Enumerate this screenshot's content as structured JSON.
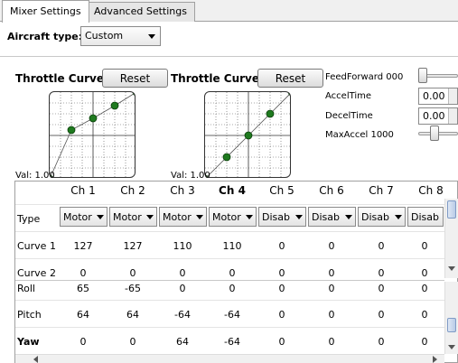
{
  "tabs": [
    {
      "label": "Mixer Settings",
      "active": true
    },
    {
      "label": "Advanced Settings",
      "active": false
    }
  ],
  "aircraft": {
    "label": "Aircraft type:",
    "value": "Custom"
  },
  "curves": [
    {
      "title": "Throttle Curve",
      "reset_label": "Reset",
      "val_label": "Val: 1.00"
    },
    {
      "title": "Throttle Curve",
      "reset_label": "Reset",
      "val_label": "Val: 1.00"
    }
  ],
  "right_panel": {
    "feedforward_label": "FeedForward",
    "feedforward_value": "000",
    "feedforward_level": 0,
    "accel_label": "AccelTime",
    "accel_value": "0.00",
    "decel_label": "DecelTime",
    "decel_value": "0.00",
    "maxaccel_label": "MaxAccel",
    "maxaccel_value": "1000",
    "maxaccel_level": 0.4
  },
  "table": {
    "columns": [
      "Ch 1",
      "Ch 2",
      "Ch 3",
      "Ch 4",
      "Ch 5",
      "Ch 6",
      "Ch 7",
      "Ch 8"
    ],
    "bold_column": 3,
    "types": [
      "Motor",
      "Motor",
      "Motor",
      "Motor",
      "Disab",
      "Disab",
      "Disab",
      "Disab"
    ],
    "rows": [
      {
        "label": "Type"
      },
      {
        "label": "Curve 1",
        "values": [
          "127",
          "127",
          "110",
          "110",
          "0",
          "0",
          "0",
          "0"
        ]
      },
      {
        "label": "Curve 2",
        "values": [
          "0",
          "0",
          "0",
          "0",
          "0",
          "0",
          "0",
          "0"
        ]
      },
      {
        "label": "Roll",
        "values": [
          "65",
          "-65",
          "0",
          "0",
          "0",
          "0",
          "0",
          "0"
        ]
      },
      {
        "label": "Pitch",
        "values": [
          "64",
          "64",
          "-64",
          "-64",
          "0",
          "0",
          "0",
          "0"
        ]
      },
      {
        "label": "Yaw",
        "values": [
          "0",
          "0",
          "64",
          "-64",
          "0",
          "0",
          "0",
          "0"
        ]
      }
    ]
  }
}
